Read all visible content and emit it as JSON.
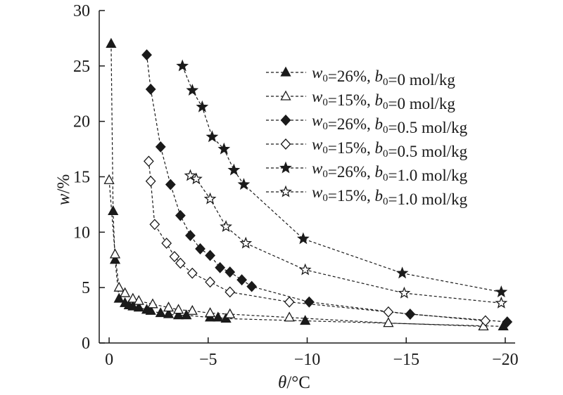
{
  "chart_data": {
    "type": "scatter",
    "title": "",
    "xlabel": {
      "symbol": "θ",
      "unit": "/°C"
    },
    "ylabel": {
      "symbol": "w",
      "unit": "/%"
    },
    "xlim": [
      0.5,
      -20.5
    ],
    "ylim": [
      0,
      30
    ],
    "xticks": [
      0,
      -5,
      -10,
      -15,
      -20
    ],
    "xtick_labels": [
      "0",
      "−5",
      "−10",
      "−15",
      "−20"
    ],
    "yticks": [
      0,
      5,
      10,
      15,
      20,
      25,
      30
    ],
    "ytick_labels": [
      "0",
      "5",
      "10",
      "15",
      "20",
      "25",
      "30"
    ],
    "grid": false,
    "legend_position": "top-right",
    "line_style": "dashed",
    "series": [
      {
        "name": "w0=26%, b0=0 mol/kg",
        "legend": {
          "w0": "26%",
          "b0": "0 mol/kg"
        },
        "marker": "triangle",
        "filled": true,
        "x": [
          -0.1,
          -0.2,
          -0.3,
          -0.5,
          -0.8,
          -1.0,
          -1.2,
          -1.5,
          -1.9,
          -2.1,
          -2.6,
          -3.0,
          -3.5,
          -3.9,
          -5.1,
          -5.5,
          -5.9,
          -9.9,
          -19.9
        ],
        "y": [
          27.0,
          11.9,
          7.5,
          4.0,
          3.6,
          3.4,
          3.3,
          3.2,
          3.0,
          2.9,
          2.7,
          2.6,
          2.5,
          2.5,
          2.3,
          2.3,
          2.2,
          2.0,
          1.5
        ]
      },
      {
        "name": "w0=15%, b0=0 mol/kg",
        "legend": {
          "w0": "15%",
          "b0": "0 mol/kg"
        },
        "marker": "triangle",
        "filled": false,
        "x": [
          0.0,
          -0.3,
          -0.5,
          -0.8,
          -1.2,
          -1.5,
          -2.2,
          -3.0,
          -3.5,
          -4.2,
          -5.1,
          -6.1,
          -9.1,
          -14.1,
          -18.9
        ],
        "y": [
          14.7,
          8.0,
          5.0,
          4.5,
          4.0,
          3.8,
          3.5,
          3.2,
          3.0,
          2.9,
          2.7,
          2.6,
          2.3,
          1.8,
          1.5
        ]
      },
      {
        "name": "w0=26%, b0=0.5 mol/kg",
        "legend": {
          "w0": "26%",
          "b0": "0.5 mol/kg"
        },
        "marker": "diamond",
        "filled": true,
        "x": [
          -1.9,
          -2.1,
          -2.6,
          -3.1,
          -3.6,
          -4.1,
          -4.6,
          -5.1,
          -5.6,
          -6.1,
          -6.7,
          -7.2,
          -10.1,
          -15.2,
          -20.1
        ],
        "y": [
          26.0,
          22.9,
          17.7,
          14.3,
          11.5,
          9.7,
          8.5,
          7.9,
          6.8,
          6.4,
          5.7,
          5.1,
          3.7,
          2.6,
          1.9
        ]
      },
      {
        "name": "w0=15%, b0=0.5 mol/kg",
        "legend": {
          "w0": "15%",
          "b0": "0.5 mol/kg"
        },
        "marker": "diamond",
        "filled": false,
        "x": [
          -2.0,
          -2.1,
          -2.3,
          -2.9,
          -3.3,
          -3.6,
          -4.2,
          -5.1,
          -6.1,
          -9.1,
          -14.1,
          -19.0
        ],
        "y": [
          16.4,
          14.6,
          10.7,
          9.0,
          7.8,
          7.2,
          6.3,
          5.5,
          4.6,
          3.7,
          2.8,
          2.0
        ]
      },
      {
        "name": "w0=26%, b0=1.0 mol/kg",
        "legend": {
          "w0": "26%",
          "b0": "1.0 mol/kg"
        },
        "marker": "star",
        "filled": true,
        "x": [
          -3.7,
          -4.2,
          -4.7,
          -5.2,
          -5.8,
          -6.3,
          -6.8,
          -9.8,
          -14.8,
          -19.8
        ],
        "y": [
          25.0,
          22.8,
          21.3,
          18.6,
          17.5,
          15.6,
          14.3,
          9.4,
          6.3,
          4.6
        ]
      },
      {
        "name": "w0=15%, b0=1.0 mol/kg",
        "legend": {
          "w0": "15%",
          "b0": "1.0 mol/kg"
        },
        "marker": "star",
        "filled": false,
        "x": [
          -4.1,
          -4.4,
          -5.1,
          -5.9,
          -6.9,
          -9.9,
          -14.9,
          -19.8
        ],
        "y": [
          15.1,
          14.8,
          13.0,
          10.5,
          9.0,
          6.6,
          4.5,
          3.6
        ]
      }
    ]
  }
}
